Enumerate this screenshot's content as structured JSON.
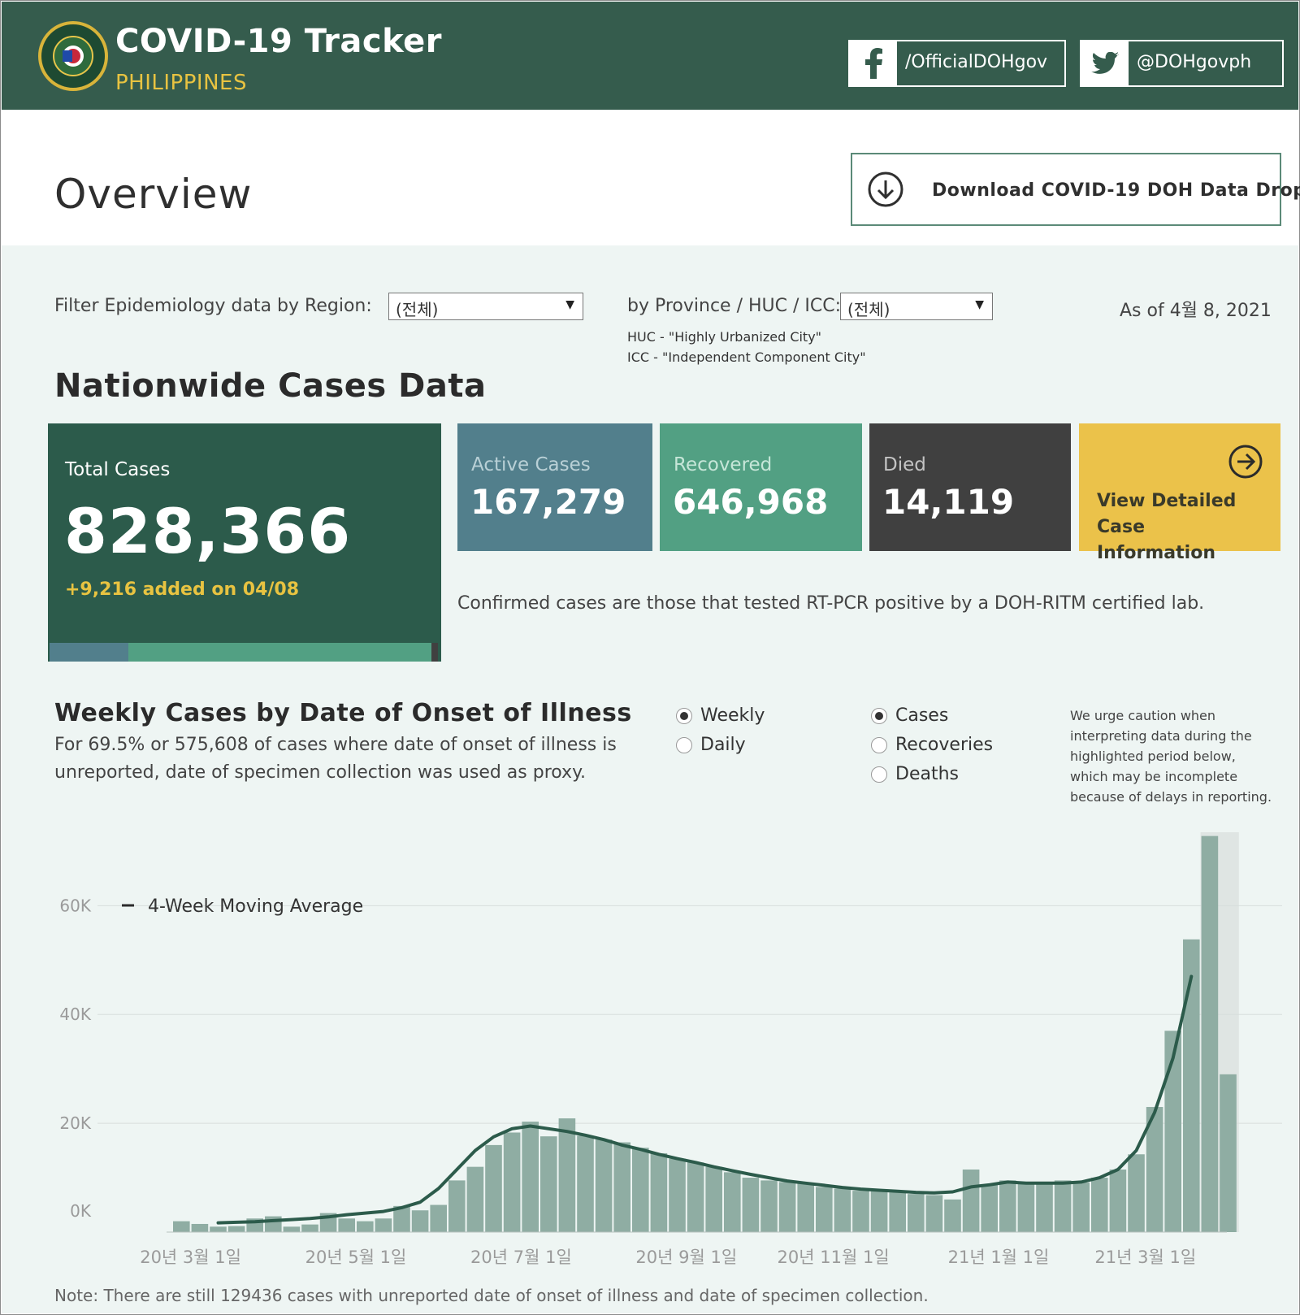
{
  "header": {
    "title": "COVID-19 Tracker",
    "subtitle": "PHILIPPINES",
    "facebook_label": "/OfficialDOHgov",
    "twitter_label": "@DOHgovph"
  },
  "overview": {
    "title": "Overview",
    "download_label": "Download COVID-19 DOH Data Drop"
  },
  "filters": {
    "region_label": "Filter Epidemiology data by Region:",
    "region_value": "(전체)",
    "province_label": "by Province / HUC / ICC:",
    "province_value": "(전체)",
    "huc_note": "HUC - \"Highly Urbanized City\"",
    "icc_note": "ICC - \"Independent Component City\"",
    "as_of": "As of 4월 8, 2021"
  },
  "nationwide": {
    "heading": "Nationwide Cases Data",
    "total_label": "Total Cases",
    "total_value": "828,366",
    "added": "+9,216 added on 04/08",
    "active_label": "Active Cases",
    "active_value": "167,279",
    "recovered_label": "Recovered",
    "recovered_value": "646,968",
    "died_label": "Died",
    "died_value": "14,119",
    "detail_label": "View Detailed Case Information",
    "confirm_note": "Confirmed cases are those that tested RT-PCR positive by a DOH-RITM certified lab.",
    "composition": {
      "active": 167279,
      "recovered": 646968,
      "died": 14119
    },
    "colors": {
      "total": "#2c5b4b",
      "active": "#527f8c",
      "recovered": "#52a083",
      "died": "#404040",
      "detail": "#ebc24a"
    }
  },
  "weekly": {
    "heading": "Weekly Cases by Date of Onset of Illness",
    "description": "For 69.5% or 575,608 of cases where date of onset of illness is unreported, date of specimen collection was used as proxy.",
    "period_options": [
      {
        "label": "Weekly",
        "selected": true
      },
      {
        "label": "Daily",
        "selected": false
      }
    ],
    "measure_options": [
      {
        "label": "Cases",
        "selected": true
      },
      {
        "label": "Recoveries",
        "selected": false
      },
      {
        "label": "Deaths",
        "selected": false
      }
    ],
    "caution": "We urge caution when interpreting data during the highlighted period below, which may be incomplete because of delays in reporting.",
    "footnote": "Note: There are still 129436 cases with unreported date of onset of illness and date of specimen collection."
  },
  "chart_data": {
    "type": "bar",
    "title": "Weekly Cases by Date of Onset of Illness",
    "xlabel": "",
    "ylabel": "",
    "ylim": [
      0,
      72000
    ],
    "yticks": [
      0,
      20000,
      40000,
      60000
    ],
    "ytick_labels": [
      "0K",
      "20K",
      "40K",
      "60K"
    ],
    "xtick_labels": [
      "20년 3월 1일",
      "20년 5월 1일",
      "20년 7월 1일",
      "20년 9월 1일",
      "20년 11월 1일",
      "21년 1월 1일",
      "21년 3월 1일"
    ],
    "xtick_bar_index": [
      1,
      10,
      19,
      28,
      36,
      45,
      53
    ],
    "legend": "4-Week Moving Average",
    "legend_position": "top-left",
    "highlighted_from_index": 55,
    "values": [
      2000,
      1500,
      1000,
      1100,
      2500,
      2900,
      1000,
      1400,
      3500,
      2500,
      2000,
      2500,
      4800,
      4000,
      5000,
      9500,
      12000,
      16000,
      18300,
      20300,
      17600,
      20900,
      17700,
      17000,
      16500,
      15500,
      14500,
      13500,
      12800,
      12000,
      11000,
      10000,
      9500,
      9200,
      9000,
      8300,
      8000,
      7600,
      7500,
      7300,
      7000,
      6800,
      6000,
      11500,
      8800,
      9500,
      9000,
      9200,
      9500,
      9100,
      10000,
      11500,
      14300,
      23000,
      37000,
      53800,
      72800,
      29000
    ],
    "moving_average": [
      null,
      null,
      1700,
      1800,
      1900,
      2100,
      2300,
      2500,
      2800,
      3200,
      3500,
      3800,
      4500,
      5500,
      8000,
      11500,
      15000,
      17500,
      19000,
      19500,
      19000,
      18500,
      17800,
      17000,
      16000,
      15200,
      14300,
      13500,
      12800,
      12000,
      11300,
      10600,
      10000,
      9400,
      9000,
      8600,
      8200,
      7900,
      7700,
      7500,
      7300,
      7200,
      7400,
      8300,
      8700,
      9200,
      9000,
      9000,
      9000,
      9200,
      10000,
      11500,
      15000,
      22000,
      32000,
      47000,
      null,
      null
    ]
  }
}
